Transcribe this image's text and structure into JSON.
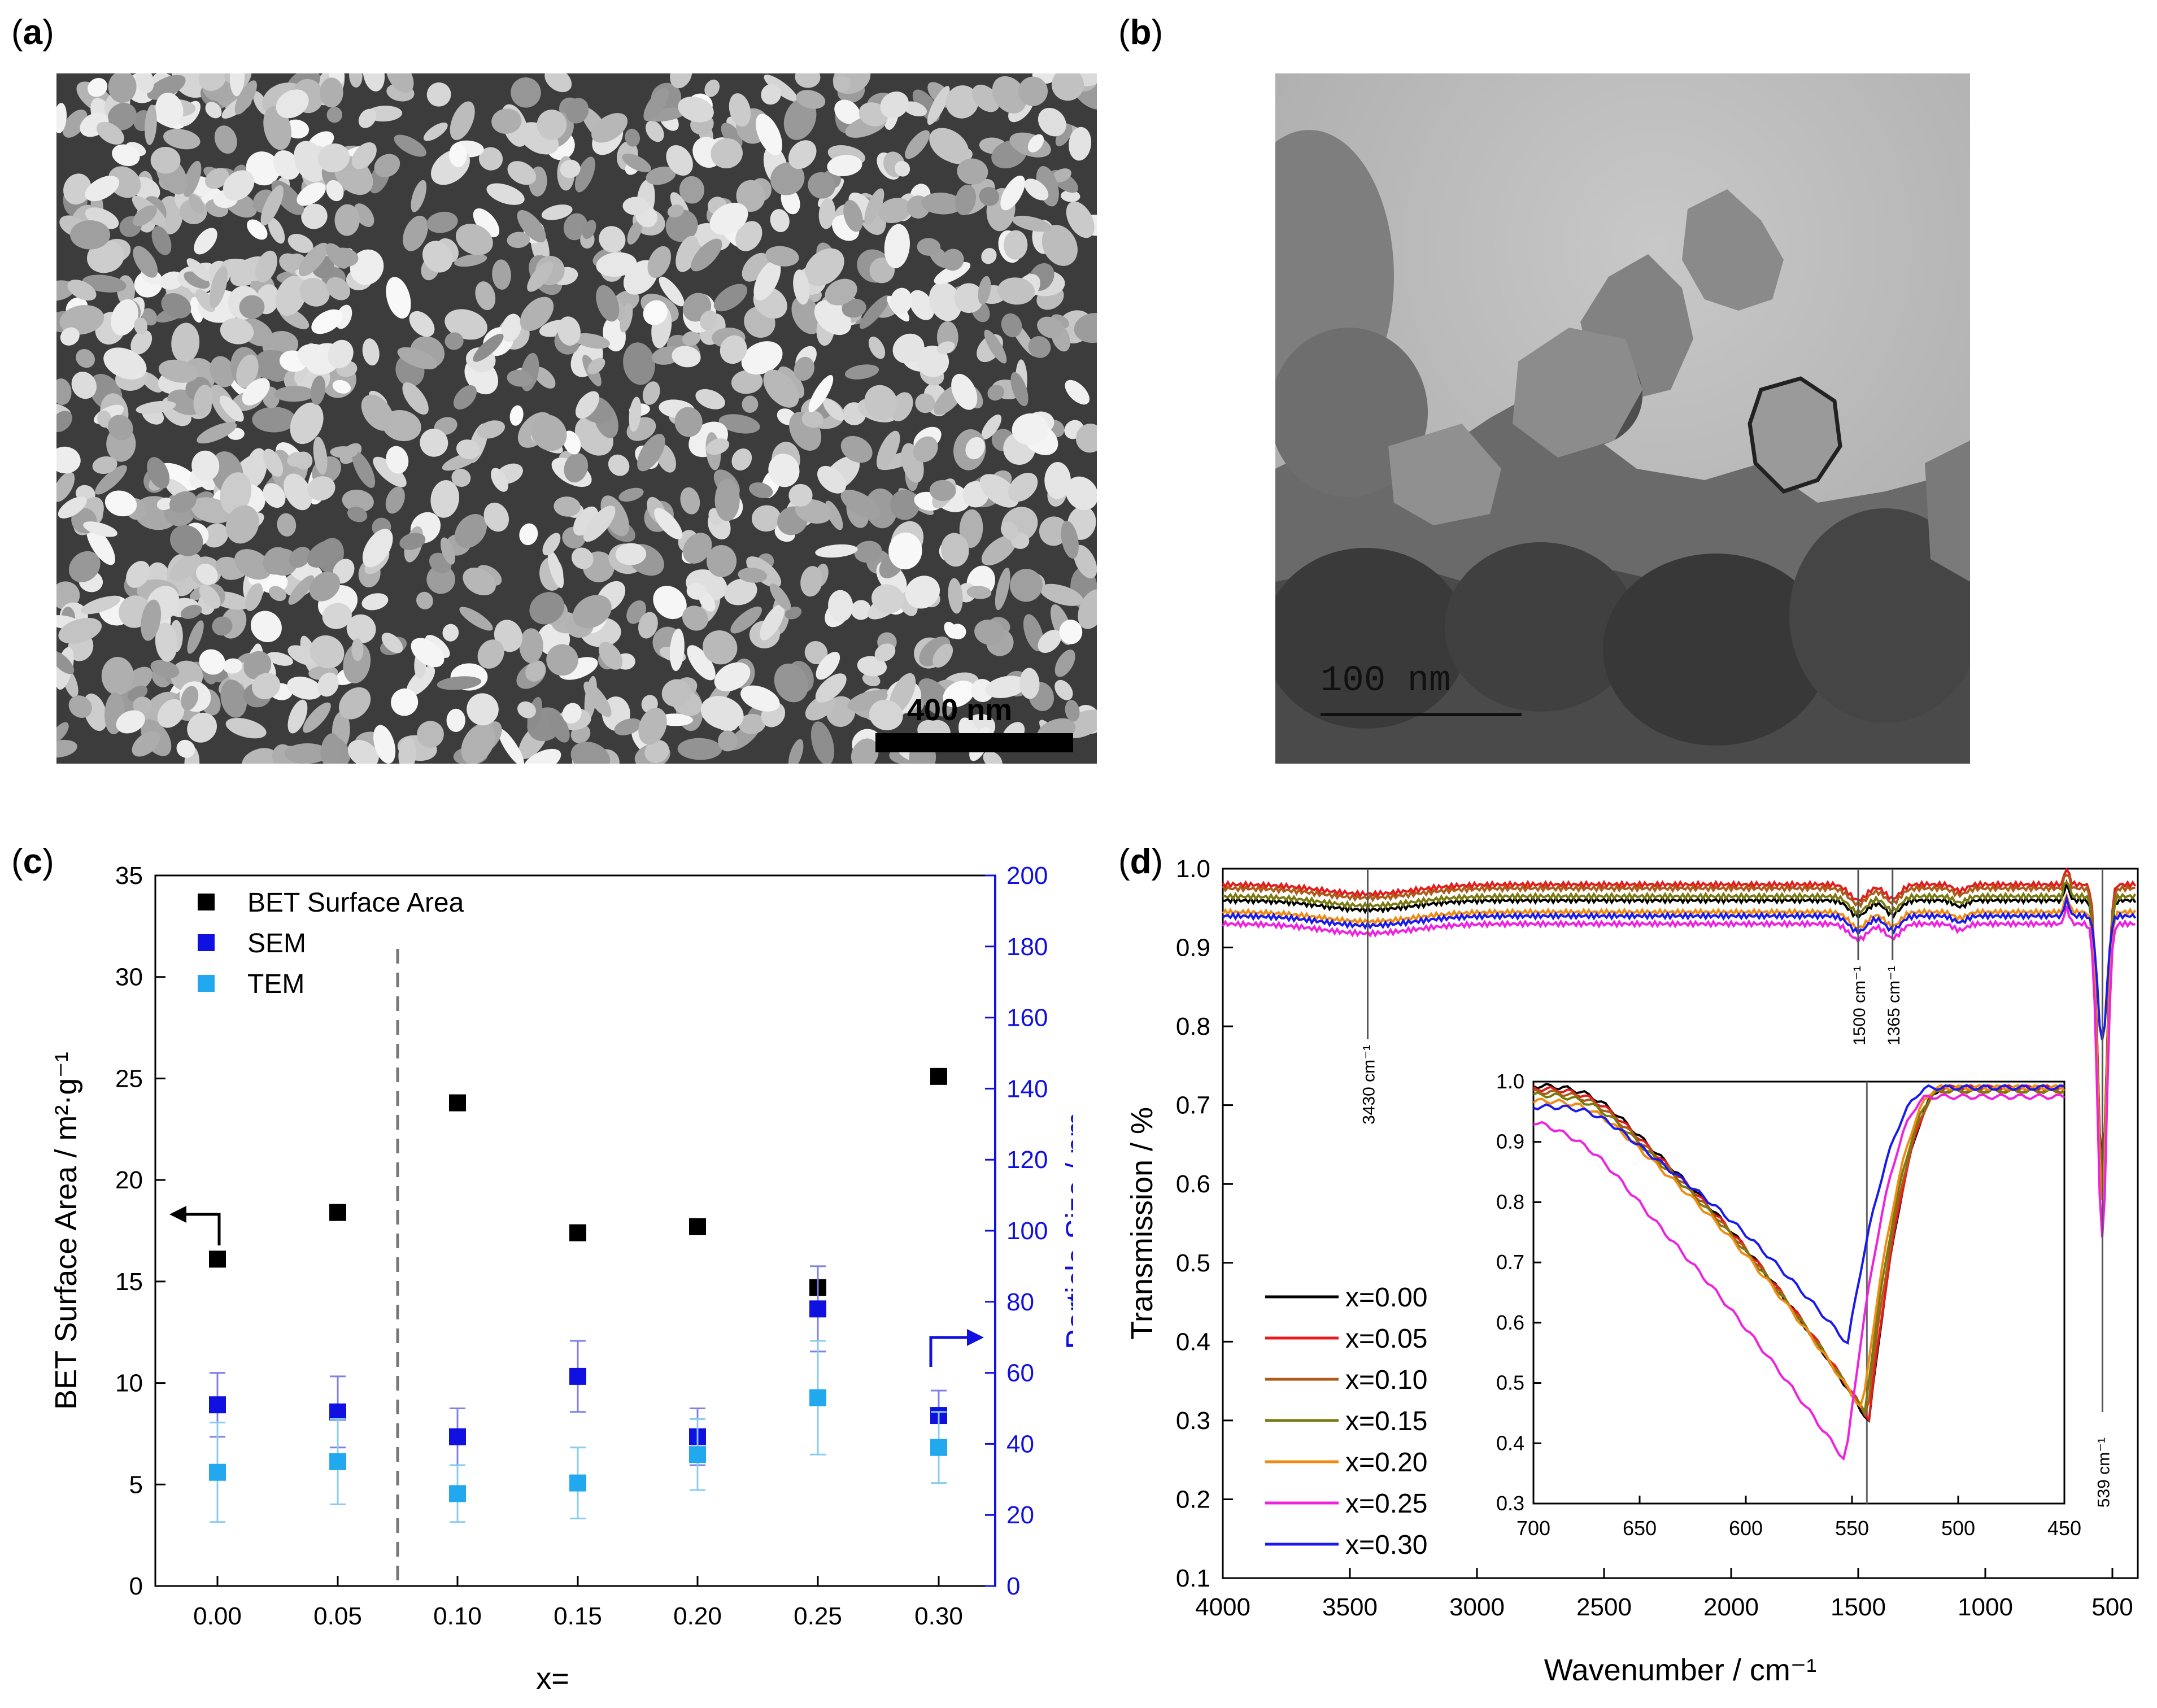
{
  "panels": {
    "a": "a",
    "b": "b",
    "c": "c",
    "d": "d"
  },
  "sem": {
    "scale_text": "400 nm"
  },
  "tem": {
    "scale_text": "100  nm"
  },
  "colors": {
    "bet": "#000000",
    "sem": "#1010e0",
    "tem": "#22a8ee",
    "x0.00": "#000000",
    "x0.05": "#e41a1c",
    "x0.10": "#b05a1a",
    "x0.15": "#7a7a10",
    "x0.20": "#f08a10",
    "x0.25": "#f020e0",
    "x0.30": "#1a1af0"
  },
  "chart_data": [
    {
      "type": "scatter",
      "xlabel": "x=",
      "ylabel": "BET Surface Area / m²·g⁻¹",
      "ylabel_right": "Particle Size / nm",
      "categories": [
        "0.00",
        "0.05",
        "0.10",
        "0.15",
        "0.20",
        "0.25",
        "0.30"
      ],
      "ylim": [
        0,
        35
      ],
      "yticks": [
        0,
        5,
        10,
        15,
        20,
        25,
        30,
        35
      ],
      "ylim_right": [
        0,
        200
      ],
      "yticks_right": [
        0,
        20,
        40,
        60,
        80,
        100,
        120,
        140,
        160,
        180,
        200
      ],
      "legend": {
        "placement": "top-left"
      },
      "divider_after_index": 1,
      "series": [
        {
          "name": "BET Surface Area",
          "axis": "left",
          "values": [
            16.1,
            18.4,
            23.8,
            17.4,
            17.7,
            14.7,
            25.1
          ]
        },
        {
          "name": "SEM",
          "axis": "right",
          "values": [
            51,
            49,
            42,
            59,
            42,
            78,
            48
          ],
          "errors": [
            9,
            10,
            8,
            10,
            8,
            12,
            7
          ]
        },
        {
          "name": "TEM",
          "axis": "right",
          "values": [
            32,
            35,
            26,
            29,
            37,
            53,
            39
          ],
          "errors": [
            14,
            12,
            8,
            10,
            10,
            16,
            10
          ]
        }
      ]
    },
    {
      "type": "line",
      "xlabel": "Wavenumber / cm⁻¹",
      "ylabel": "Transmission / %",
      "xlim": [
        4000,
        400
      ],
      "xticks": [
        4000,
        3500,
        3000,
        2500,
        2000,
        1500,
        1000,
        500
      ],
      "ylim": [
        0.1,
        1.0
      ],
      "yticks": [
        "0.1",
        "0.2",
        "0.3",
        "0.4",
        "0.5",
        "0.6",
        "0.7",
        "0.8",
        "0.9",
        "1.0"
      ],
      "legend": {
        "placement": "bottom-left"
      },
      "series": [
        {
          "name": "x=0.00",
          "baseline": 0.96
        },
        {
          "name": "x=0.05",
          "baseline": 0.98
        },
        {
          "name": "x=0.10",
          "baseline": 0.975
        },
        {
          "name": "x=0.15",
          "baseline": 0.965
        },
        {
          "name": "x=0.20",
          "baseline": 0.945
        },
        {
          "name": "x=0.25",
          "baseline": 0.93
        },
        {
          "name": "x=0.30",
          "baseline": 0.94
        }
      ],
      "annotations": [
        {
          "x": 3430,
          "label": "3430 cm⁻¹"
        },
        {
          "x": 1500,
          "label": "1500 cm⁻¹"
        },
        {
          "x": 1365,
          "label": "1365 cm⁻¹"
        },
        {
          "x": 539,
          "label": "539 cm⁻¹"
        }
      ],
      "inset": {
        "xlim": [
          700,
          450
        ],
        "xticks": [
          700,
          650,
          600,
          550,
          500,
          450
        ],
        "ylim": [
          0.3,
          1.0
        ],
        "yticks": [
          "0.3",
          "0.4",
          "0.5",
          "0.6",
          "0.7",
          "0.8",
          "0.9",
          "1.0"
        ],
        "marker_x": 543,
        "minima": [
          {
            "name": "x=0.00",
            "x": 542,
            "y": 0.435
          },
          {
            "name": "x=0.05",
            "x": 542,
            "y": 0.44
          },
          {
            "name": "x=0.10",
            "x": 543,
            "y": 0.445
          },
          {
            "name": "x=0.15",
            "x": 544,
            "y": 0.45
          },
          {
            "name": "x=0.20",
            "x": 545,
            "y": 0.455
          },
          {
            "name": "x=0.25",
            "x": 553,
            "y": 0.37
          },
          {
            "name": "x=0.30",
            "x": 552,
            "y": 0.565
          }
        ]
      }
    }
  ]
}
